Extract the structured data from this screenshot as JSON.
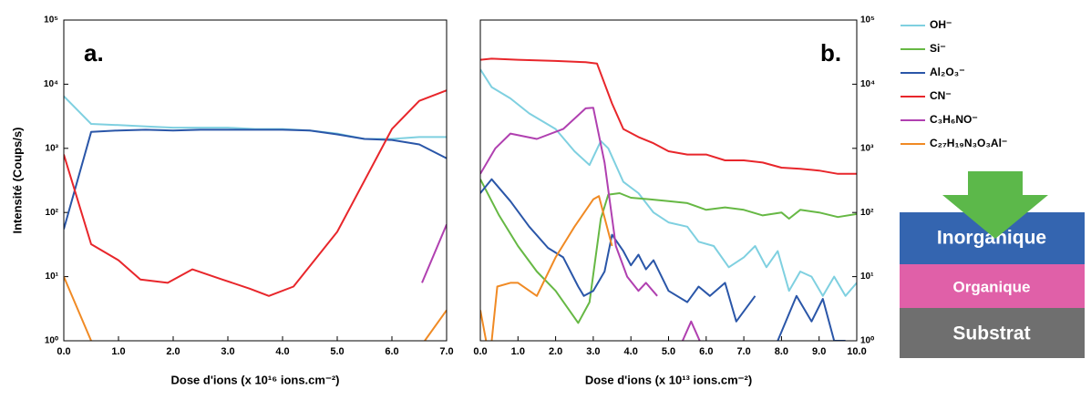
{
  "chart_data": [
    {
      "type": "line",
      "annotation": "a.",
      "ylabel": "Intensité (Coups/s)",
      "xlabel": "Dose d'ions (x 10¹⁶ ions.cm⁻²)",
      "xlim": [
        0,
        7
      ],
      "ylim": [
        1,
        100000
      ],
      "log_y": true,
      "y_axis_side": "left",
      "xticks": [
        {
          "value": 0,
          "label": "0.0"
        },
        {
          "value": 1,
          "label": "1.0"
        },
        {
          "value": 2,
          "label": "2.0"
        },
        {
          "value": 3,
          "label": "3.0"
        },
        {
          "value": 4,
          "label": "4.0"
        },
        {
          "value": 5,
          "label": "5.0"
        },
        {
          "value": 6,
          "label": "6.0"
        },
        {
          "value": 7,
          "label": "7.0"
        }
      ],
      "yticks": [
        {
          "value": 1,
          "label": "10⁰"
        },
        {
          "value": 10,
          "label": "10¹"
        },
        {
          "value": 100,
          "label": "10²"
        },
        {
          "value": 1000,
          "label": "10³"
        },
        {
          "value": 10000,
          "label": "10⁴"
        },
        {
          "value": 100000,
          "label": "10⁵"
        }
      ],
      "series": [
        {
          "color": "#7fd0e0",
          "x": [
            0,
            0.5,
            1,
            1.5,
            2,
            2.5,
            3,
            3.5,
            4,
            4.5,
            5,
            5.5,
            6,
            6.5,
            7
          ],
          "values": [
            6500,
            2400,
            2300,
            2200,
            2100,
            2100,
            2100,
            2000,
            2000,
            1900,
            1700,
            1400,
            1400,
            1500,
            1500
          ]
        },
        {
          "color": "#2a56a8",
          "x": [
            0,
            0.5,
            1,
            1.5,
            2,
            2.5,
            3,
            3.5,
            4,
            4.5,
            5,
            5.5,
            6,
            6.5,
            7
          ],
          "values": [
            55,
            1800,
            1900,
            1950,
            1900,
            1950,
            1950,
            1950,
            1950,
            1900,
            1650,
            1400,
            1350,
            1150,
            700
          ]
        },
        {
          "color": "#e8262b",
          "x": [
            0,
            0.5,
            1,
            1.4,
            1.9,
            2.35,
            2.9,
            3.4,
            3.75,
            4.2,
            5,
            6,
            6.5,
            7
          ],
          "values": [
            800,
            32,
            18,
            9,
            8,
            13,
            9,
            6.5,
            5,
            7,
            50,
            2000,
            5500,
            8000
          ]
        },
        {
          "color": "#b040b0",
          "x": [
            6.55,
            7
          ],
          "values": [
            8,
            65
          ]
        },
        {
          "color": "#f08a24",
          "x": [
            0,
            0.5
          ],
          "values": [
            10,
            1
          ]
        },
        {
          "color": "#f08a24",
          "x": [
            6.6,
            7
          ],
          "values": [
            1,
            3
          ]
        }
      ]
    },
    {
      "type": "line",
      "annotation": "b.",
      "xlabel": "Dose d'ions (x 10¹³ ions.cm⁻²)",
      "xlim": [
        0,
        10
      ],
      "ylim": [
        1,
        100000
      ],
      "log_y": true,
      "y_axis_side": "right",
      "legend": "right",
      "xticks": [
        {
          "value": 0,
          "label": "0.0"
        },
        {
          "value": 1,
          "label": "1.0"
        },
        {
          "value": 2,
          "label": "2.0"
        },
        {
          "value": 3,
          "label": "3.0"
        },
        {
          "value": 4,
          "label": "4.0"
        },
        {
          "value": 5,
          "label": "5.0"
        },
        {
          "value": 6,
          "label": "6.0"
        },
        {
          "value": 7,
          "label": "7.0"
        },
        {
          "value": 8,
          "label": "8.0"
        },
        {
          "value": 9,
          "label": "9.0"
        },
        {
          "value": 10,
          "label": "10.0"
        }
      ],
      "yticks": [
        {
          "value": 1,
          "label": "10⁰"
        },
        {
          "value": 10,
          "label": "10¹"
        },
        {
          "value": 100,
          "label": "10²"
        },
        {
          "value": 1000,
          "label": "10³"
        },
        {
          "value": 10000,
          "label": "10⁴"
        },
        {
          "value": 100000,
          "label": "10⁵"
        }
      ],
      "series": [
        {
          "name": "OH⁻",
          "color": "#7fd0e0",
          "x": [
            0,
            0.3,
            0.8,
            1.3,
            2,
            2.5,
            2.9,
            3.2,
            3.4,
            3.8,
            4.2,
            4.6,
            5,
            5.5,
            5.8,
            6.2,
            6.6,
            7,
            7.3,
            7.6,
            7.9,
            8.2,
            8.5,
            8.8,
            9.1,
            9.4,
            9.7,
            10
          ],
          "values": [
            17000,
            9000,
            6000,
            3500,
            2000,
            900,
            550,
            1300,
            1000,
            300,
            200,
            100,
            70,
            60,
            35,
            30,
            14,
            20,
            30,
            14,
            25,
            6,
            12,
            10,
            5,
            10,
            5,
            8
          ]
        },
        {
          "name": "Si⁻",
          "color": "#66b844",
          "x": [
            0,
            0.5,
            1,
            1.5,
            2,
            2.6,
            2.9,
            3.2,
            3.4,
            3.7,
            4,
            4.5,
            5,
            5.5,
            6,
            6.5,
            7,
            7.5,
            8,
            8.2,
            8.5,
            9,
            9.5,
            10
          ],
          "values": [
            330,
            90,
            30,
            12,
            6,
            1.9,
            4,
            80,
            190,
            200,
            170,
            160,
            150,
            140,
            110,
            120,
            110,
            90,
            100,
            80,
            110,
            100,
            85,
            95
          ]
        },
        {
          "name": "Al₂O₃⁻",
          "color": "#2a56a8",
          "x": [
            0,
            0.3,
            0.8,
            1.3,
            1.8,
            2.2,
            2.6,
            2.75,
            3,
            3.3,
            3.5,
            3.8,
            4,
            4.2,
            4.4,
            4.6,
            5,
            5.5,
            5.8,
            6.1,
            6.5,
            6.8,
            7.3,
            7.6,
            7.9,
            8.4,
            8.8,
            9.1,
            9.4,
            9.7
          ],
          "values": [
            200,
            330,
            150,
            60,
            28,
            20,
            7,
            5,
            6,
            12,
            45,
            25,
            15,
            22,
            13,
            18,
            6,
            4,
            7,
            5,
            8,
            2,
            5,
            null,
            1,
            5,
            2,
            4.5,
            1,
            1
          ]
        },
        {
          "name": "CN⁻",
          "color": "#e8262b",
          "x": [
            0,
            0.3,
            1,
            2,
            2.8,
            3.1,
            3.5,
            3.8,
            4.2,
            4.6,
            5,
            5.5,
            6,
            6.5,
            7,
            7.5,
            8,
            8.5,
            9,
            9.5,
            10
          ],
          "values": [
            24000,
            25000,
            24000,
            23000,
            22000,
            21000,
            5000,
            2000,
            1500,
            1200,
            900,
            800,
            800,
            650,
            650,
            600,
            500,
            480,
            450,
            400,
            400
          ]
        },
        {
          "name": "C₃H₆NO⁻",
          "color": "#b040b0",
          "x": [
            0,
            0.4,
            0.8,
            1.5,
            2.2,
            2.8,
            3,
            3.3,
            3.6,
            3.9,
            4.2,
            4.4,
            4.7,
            5,
            5.3,
            5.6,
            5.9
          ],
          "values": [
            400,
            1000,
            1700,
            1400,
            2000,
            4200,
            4300,
            600,
            30,
            10,
            6,
            8,
            5,
            null,
            0.8,
            2,
            0.8
          ]
        },
        {
          "name": "C₂₇H₁₉N₃O₃Al⁻",
          "color": "#f08a24",
          "x": [
            0,
            0.25,
            0.45,
            0.8,
            1,
            1.5,
            2,
            2.5,
            3,
            3.15,
            3.5
          ],
          "values": [
            3,
            0.5,
            7,
            8,
            8,
            5,
            20,
            60,
            160,
            180,
            30
          ]
        }
      ]
    }
  ],
  "diagram": {
    "layers": [
      "Inorganique",
      "Organique",
      "Substrat"
    ]
  }
}
